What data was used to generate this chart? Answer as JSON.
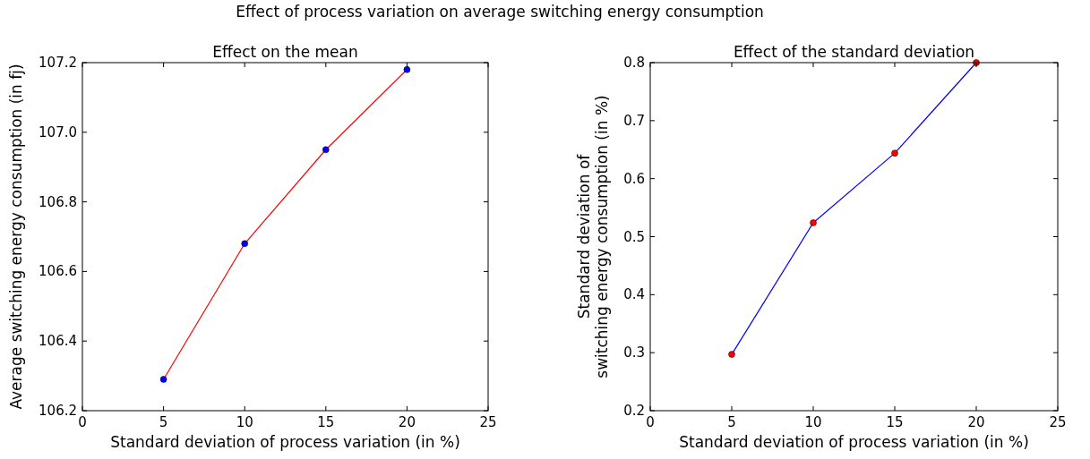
{
  "chart_data": [
    {
      "type": "line",
      "title": "Effect on the mean",
      "annotations": [
        "Effect of process variation on average switching energy consumption"
      ],
      "xlabel": "Standard deviation of process variation (in %)",
      "ylabel": "Average switching energy consumption (in fj)",
      "x": [
        5,
        10,
        15,
        20
      ],
      "series": [
        {
          "color": "#ff0000",
          "marker": "none",
          "values": [
            106.29,
            106.68,
            106.95,
            107.18
          ]
        },
        {
          "type": "scatter",
          "color": "#0000ff",
          "marker": "circle",
          "values": [
            106.29,
            106.68,
            106.95,
            107.18
          ]
        }
      ],
      "xlim": [
        0,
        25
      ],
      "xticks": [
        0,
        5,
        10,
        15,
        20,
        25
      ],
      "ylim": [
        106.2,
        107.2
      ],
      "yticks": [
        106.2,
        106.4,
        106.6,
        106.8,
        {
          "value": 107,
          "label": "107.0"
        },
        107.2
      ],
      "grid": false
    },
    {
      "type": "line",
      "title": "Effect of the standard deviation",
      "xlabel": "Standard deviation of process variation (in %)",
      "ylabel": "Standard deviation of\nswitching energy consumption (in %)",
      "x": [
        5,
        10,
        15,
        20
      ],
      "series": [
        {
          "color": "#0000ff",
          "marker": "none",
          "values": [
            0.297,
            0.524,
            0.644,
            0.8
          ]
        },
        {
          "type": "scatter",
          "color": "#ff0000",
          "marker": "circle",
          "values": [
            0.297,
            0.524,
            0.644,
            0.8
          ]
        }
      ],
      "xlim": [
        0,
        25
      ],
      "xticks": [
        0,
        5,
        10,
        15,
        20,
        25
      ],
      "ylim": [
        0.2,
        0.8
      ],
      "yticks": [
        0.2,
        0.3,
        0.4,
        0.5,
        0.6,
        0.7,
        0.8
      ],
      "grid": false
    }
  ]
}
